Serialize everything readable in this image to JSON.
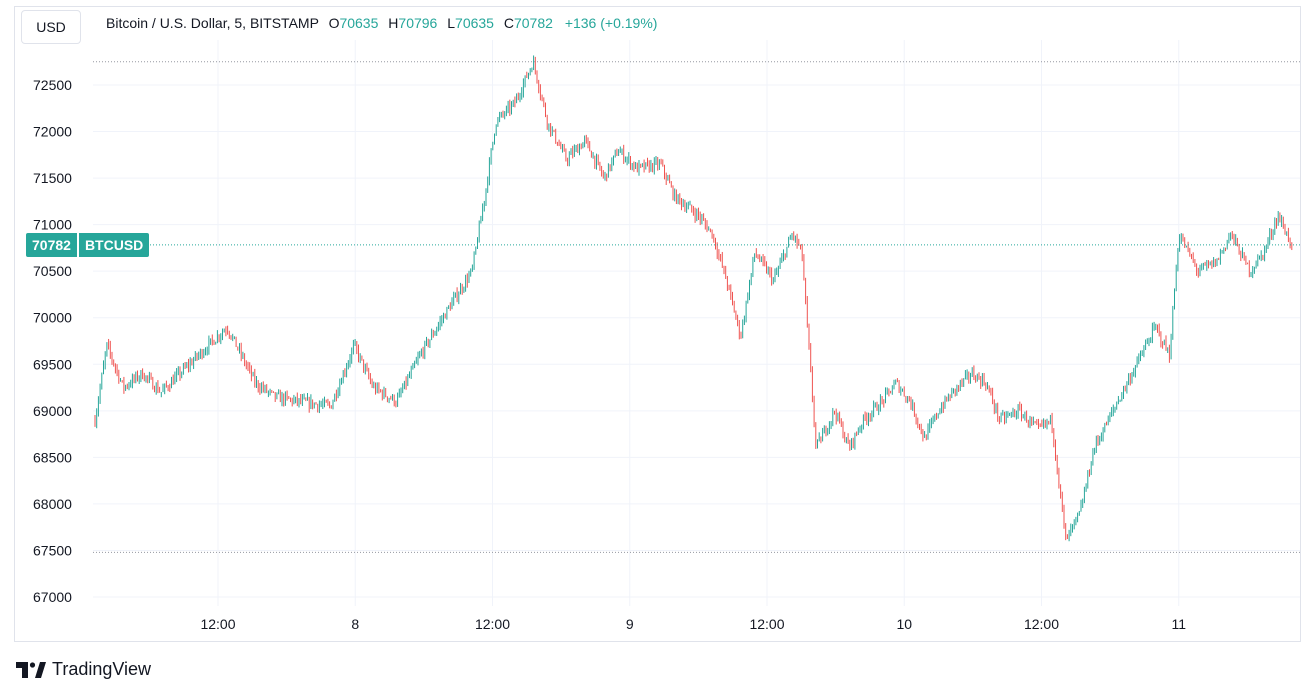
{
  "currency_button": "USD",
  "legend": {
    "title": "Bitcoin / U.S. Dollar, 5, BITSTAMP",
    "o_label": "O",
    "o_value": "70635",
    "h_label": "H",
    "h_value": "70796",
    "l_label": "L",
    "l_value": "70635",
    "c_label": "C",
    "c_value": "70782",
    "change": "+136 (+0.19%)"
  },
  "price_tag": {
    "value": "70782",
    "symbol": "BTCUSD"
  },
  "brand": "TradingView",
  "colors": {
    "up": "#26a69a",
    "down": "#ef5350",
    "grid": "#f0f3fa",
    "dotted": "#9598a1"
  },
  "chart_data": {
    "type": "candlestick",
    "symbol": "BTCUSD",
    "interval_minutes": 5,
    "ylim": [
      67000,
      72800
    ],
    "y_ticks": [
      67000,
      67500,
      68000,
      68500,
      69000,
      69500,
      70000,
      70500,
      71000,
      71500,
      72000,
      72500
    ],
    "x_ticks": [
      "12:00",
      "8",
      "12:00",
      "9",
      "12:00",
      "10",
      "12:00",
      "11"
    ],
    "high_line": 72750,
    "low_line": 67480,
    "last_price": 70782,
    "path": [
      [
        0,
        68900
      ],
      [
        0.25,
        69700
      ],
      [
        0.6,
        69250
      ],
      [
        1.0,
        69400
      ],
      [
        1.4,
        69200
      ],
      [
        1.9,
        69450
      ],
      [
        2.8,
        69900
      ],
      [
        3.4,
        69300
      ],
      [
        3.8,
        69150
      ],
      [
        4.3,
        69100
      ],
      [
        5.0,
        69050
      ],
      [
        5.5,
        69700
      ],
      [
        5.9,
        69250
      ],
      [
        6.4,
        69100
      ],
      [
        6.9,
        69600
      ],
      [
        7.5,
        70100
      ],
      [
        8.0,
        70500
      ],
      [
        8.3,
        71400
      ],
      [
        8.5,
        72100
      ],
      [
        8.9,
        72300
      ],
      [
        9.3,
        72750
      ],
      [
        9.6,
        72100
      ],
      [
        10.0,
        71700
      ],
      [
        10.4,
        71900
      ],
      [
        10.8,
        71500
      ],
      [
        11.1,
        71800
      ],
      [
        11.5,
        71600
      ],
      [
        12.0,
        71650
      ],
      [
        12.3,
        71300
      ],
      [
        12.8,
        71100
      ],
      [
        13.1,
        70900
      ],
      [
        13.4,
        70400
      ],
      [
        13.7,
        69800
      ],
      [
        14.0,
        70700
      ],
      [
        14.4,
        70400
      ],
      [
        14.8,
        70900
      ],
      [
        15.0,
        70700
      ],
      [
        15.3,
        68600
      ],
      [
        15.7,
        69000
      ],
      [
        16.0,
        68600
      ],
      [
        16.3,
        68900
      ],
      [
        16.7,
        69100
      ],
      [
        17.0,
        69300
      ],
      [
        17.3,
        69100
      ],
      [
        17.6,
        68700
      ],
      [
        17.9,
        69000
      ],
      [
        18.2,
        69200
      ],
      [
        18.6,
        69400
      ],
      [
        18.9,
        69300
      ],
      [
        19.2,
        68900
      ],
      [
        19.6,
        69000
      ],
      [
        20.0,
        68800
      ],
      [
        20.3,
        68900
      ],
      [
        20.6,
        67600
      ],
      [
        20.9,
        67900
      ],
      [
        21.2,
        68600
      ],
      [
        21.6,
        69000
      ],
      [
        22.0,
        69400
      ],
      [
        22.5,
        69900
      ],
      [
        22.8,
        69600
      ],
      [
        23.0,
        70900
      ],
      [
        23.4,
        70500
      ],
      [
        23.8,
        70600
      ],
      [
        24.1,
        70900
      ],
      [
        24.5,
        70500
      ],
      [
        24.8,
        70700
      ],
      [
        25.1,
        71100
      ],
      [
        25.4,
        70782
      ]
    ]
  }
}
